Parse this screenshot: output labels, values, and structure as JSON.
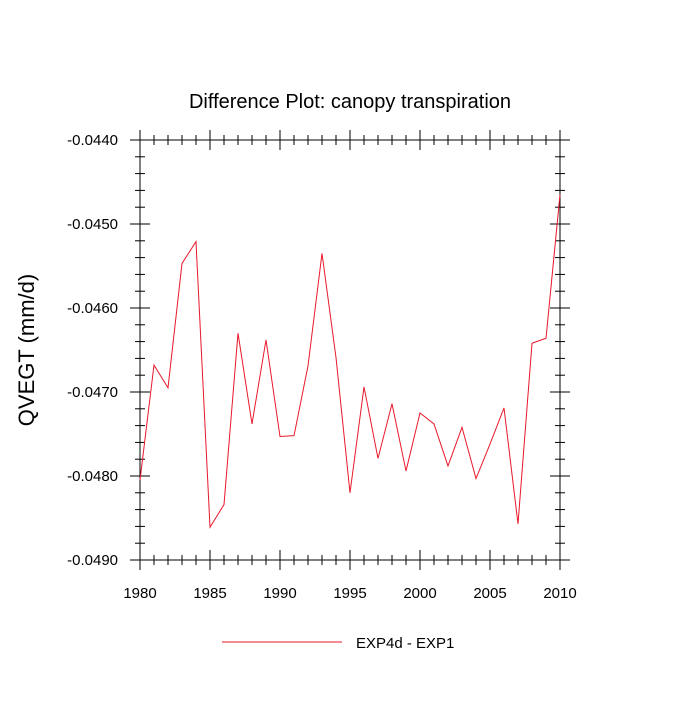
{
  "chart_data": {
    "type": "line",
    "title": "Difference Plot: canopy transpiration",
    "ylabel": "QVEGT  (mm/d)",
    "xlabel": "",
    "xlim": [
      1980,
      2010
    ],
    "ylim": [
      -0.049,
      -0.044
    ],
    "x_ticks": [
      1980,
      1985,
      1990,
      1995,
      2000,
      2005,
      2010
    ],
    "x_tick_labels": [
      "1980",
      "1985",
      "1990",
      "1995",
      "2000",
      "2005",
      "2010"
    ],
    "y_ticks": [
      -0.049,
      -0.048,
      -0.047,
      -0.046,
      -0.045,
      -0.044
    ],
    "y_tick_labels": [
      "-0.0490",
      "-0.0480",
      "-0.0470",
      "-0.0460",
      "-0.0450",
      "-0.0440"
    ],
    "grid": false,
    "legend_position": "bottom-center",
    "series": [
      {
        "name": "EXP4d - EXP1",
        "color": "#e8182a",
        "x": [
          1980,
          1981,
          1982,
          1983,
          1984,
          1985,
          1986,
          1987,
          1988,
          1989,
          1990,
          1991,
          1992,
          1993,
          1994,
          1995,
          1996,
          1997,
          1998,
          1999,
          2000,
          2001,
          2002,
          2003,
          2004,
          2005,
          2006,
          2007,
          2008,
          2009,
          2010
        ],
        "y": [
          -0.04805,
          -0.04668,
          -0.04695,
          -0.04547,
          -0.04521,
          -0.04861,
          -0.04834,
          -0.0463,
          -0.04738,
          -0.04638,
          -0.04753,
          -0.04752,
          -0.04669,
          -0.04535,
          -0.04659,
          -0.0482,
          -0.04694,
          -0.04779,
          -0.04714,
          -0.04794,
          -0.04725,
          -0.04738,
          -0.04788,
          -0.04742,
          -0.04803,
          -0.04762,
          -0.04719,
          -0.04857,
          -0.04642,
          -0.04636,
          -0.04465
        ]
      }
    ]
  }
}
